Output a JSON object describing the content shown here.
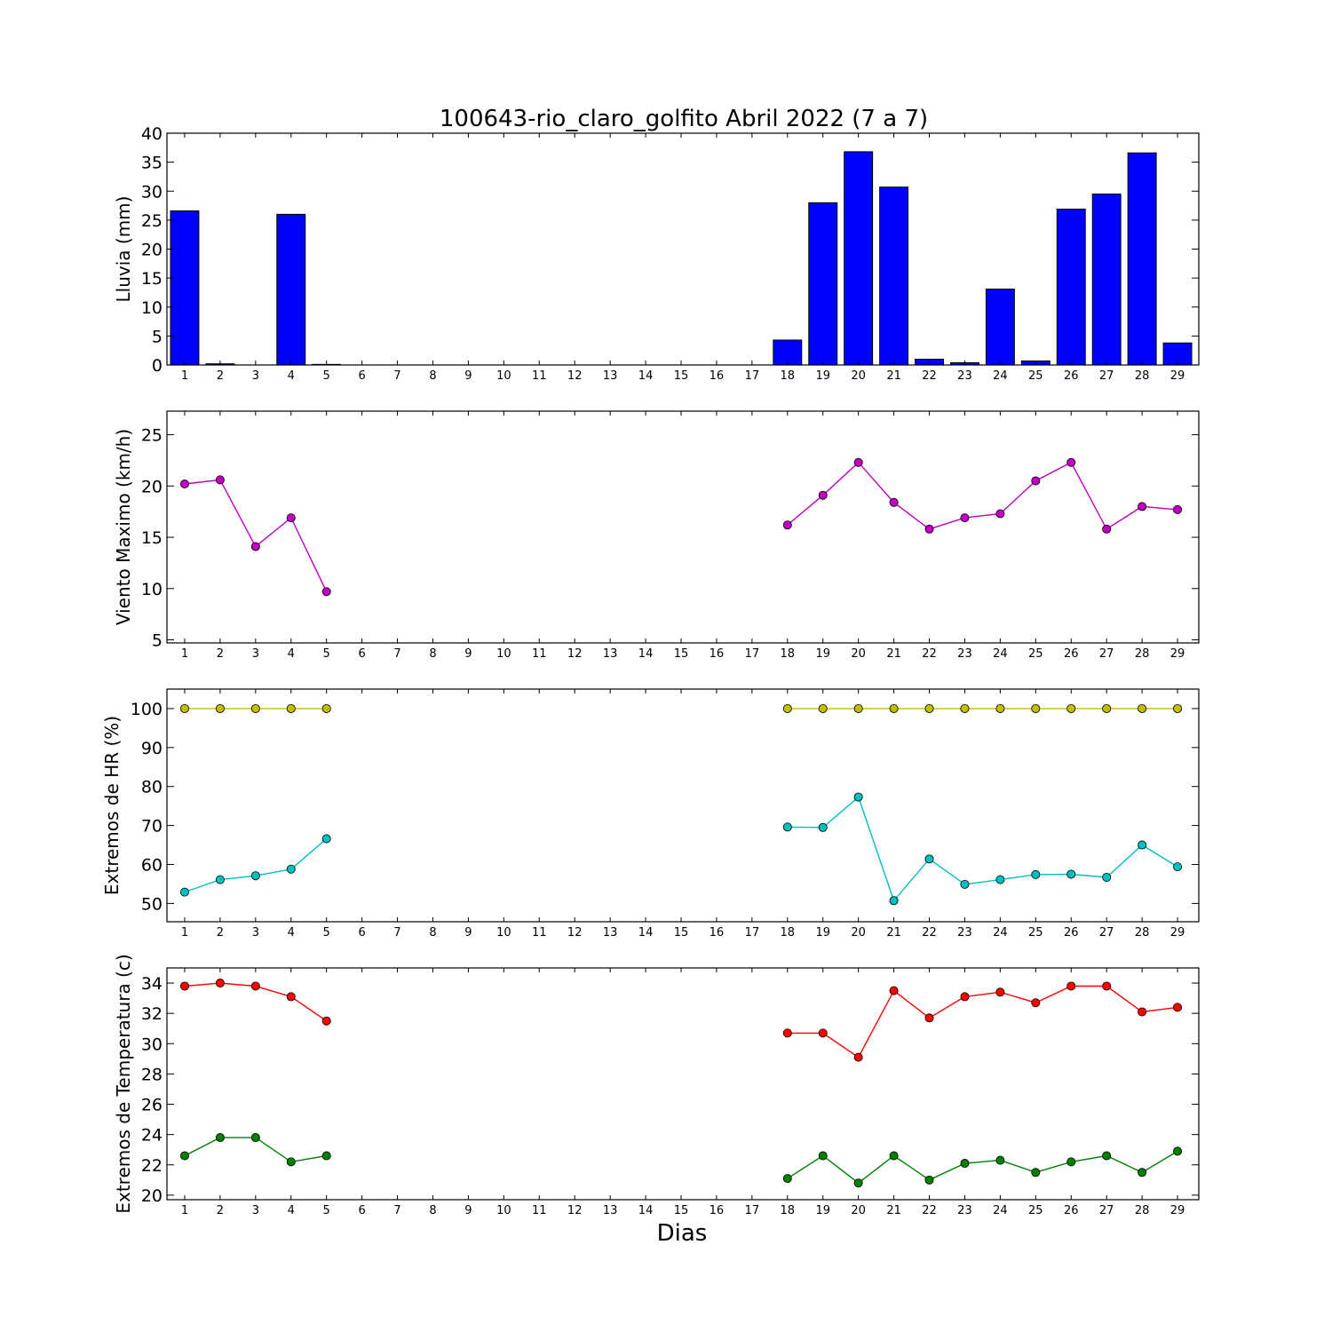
{
  "figure": {
    "title": "100643-rio_claro_golfito Abril 2022  (7 a 7)",
    "xlabel": "Dias"
  },
  "chart_data": [
    {
      "type": "bar",
      "ylabel": "Lluvia (mm)",
      "categories": [
        1,
        2,
        3,
        4,
        5,
        6,
        7,
        8,
        9,
        10,
        11,
        12,
        13,
        14,
        15,
        16,
        17,
        18,
        19,
        20,
        21,
        22,
        23,
        24,
        25,
        26,
        27,
        28,
        29
      ],
      "ylim": [
        0,
        40
      ],
      "yticks": [
        0,
        5,
        10,
        15,
        20,
        25,
        30,
        35,
        40
      ],
      "series": [
        {
          "color": "#0000ff",
          "values": [
            26.6,
            0.2,
            0,
            26.0,
            0.1,
            0,
            0,
            0,
            0,
            0,
            0,
            0,
            0,
            0,
            0,
            0,
            0,
            4.3,
            28.0,
            36.8,
            30.7,
            1.0,
            0.4,
            13.1,
            0.7,
            26.9,
            29.5,
            36.6,
            3.8
          ]
        }
      ]
    },
    {
      "type": "line",
      "ylabel": "Viento Maximo (km/h)",
      "categories": [
        1,
        2,
        3,
        4,
        5,
        6,
        7,
        8,
        9,
        10,
        11,
        12,
        13,
        14,
        15,
        16,
        17,
        18,
        19,
        20,
        21,
        22,
        23,
        24,
        25,
        26,
        27,
        28,
        29
      ],
      "ylim": [
        4.7,
        27.3
      ],
      "yticks": [
        5,
        10,
        15,
        20,
        25
      ],
      "series": [
        {
          "color": "#c000c0",
          "values": [
            20.2,
            20.6,
            14.1,
            16.9,
            9.7,
            null,
            null,
            null,
            null,
            null,
            null,
            null,
            null,
            null,
            null,
            null,
            null,
            16.2,
            19.1,
            22.3,
            18.4,
            15.8,
            16.9,
            17.3,
            20.5,
            22.3,
            15.8,
            18.0,
            17.7
          ]
        }
      ]
    },
    {
      "type": "line",
      "ylabel": "Extremos de HR (%)",
      "categories": [
        1,
        2,
        3,
        4,
        5,
        6,
        7,
        8,
        9,
        10,
        11,
        12,
        13,
        14,
        15,
        16,
        17,
        18,
        19,
        20,
        21,
        22,
        23,
        24,
        25,
        26,
        27,
        28,
        29
      ],
      "ylim": [
        45.3,
        105.0
      ],
      "yticks": [
        50,
        60,
        70,
        80,
        90,
        100
      ],
      "series": [
        {
          "color": "#bfbf00",
          "values": [
            100,
            100,
            100,
            100,
            100,
            null,
            null,
            null,
            null,
            null,
            null,
            null,
            null,
            null,
            null,
            null,
            null,
            100,
            100,
            100,
            100,
            100,
            100,
            100,
            100,
            100,
            100,
            100,
            100
          ]
        },
        {
          "color": "#00bfbf",
          "values": [
            52.9,
            56.1,
            57.1,
            58.8,
            66.6,
            null,
            null,
            null,
            null,
            null,
            null,
            null,
            null,
            null,
            null,
            null,
            null,
            69.6,
            69.5,
            77.3,
            50.7,
            61.4,
            54.9,
            56.1,
            57.4,
            57.5,
            56.7,
            65.0,
            59.4
          ]
        }
      ]
    },
    {
      "type": "line",
      "ylabel": "Extremos de Temperatura (c)",
      "categories": [
        1,
        2,
        3,
        4,
        5,
        6,
        7,
        8,
        9,
        10,
        11,
        12,
        13,
        14,
        15,
        16,
        17,
        18,
        19,
        20,
        21,
        22,
        23,
        24,
        25,
        26,
        27,
        28,
        29
      ],
      "ylim": [
        19.7,
        35.0
      ],
      "yticks": [
        20,
        22,
        24,
        26,
        28,
        30,
        32,
        34
      ],
      "series": [
        {
          "color": "#ff0000",
          "values": [
            33.8,
            34.0,
            33.8,
            33.1,
            31.5,
            null,
            null,
            null,
            null,
            null,
            null,
            null,
            null,
            null,
            null,
            null,
            null,
            30.7,
            30.7,
            29.1,
            33.5,
            31.7,
            33.1,
            33.4,
            32.7,
            33.8,
            33.8,
            32.1,
            32.4
          ]
        },
        {
          "color": "#008000",
          "values": [
            22.6,
            23.8,
            23.8,
            22.2,
            22.6,
            null,
            null,
            null,
            null,
            null,
            null,
            null,
            null,
            null,
            null,
            null,
            null,
            21.1,
            22.6,
            20.8,
            22.6,
            21.0,
            22.1,
            22.3,
            21.5,
            22.2,
            22.6,
            21.5,
            22.9
          ]
        }
      ]
    }
  ]
}
